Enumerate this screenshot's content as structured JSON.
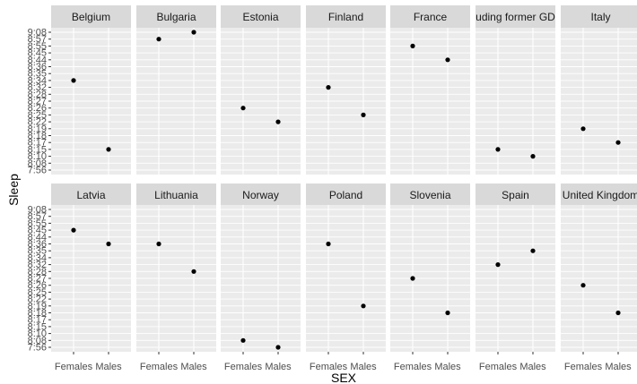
{
  "chart_data": {
    "type": "scatter",
    "xlabel": "SEX",
    "ylabel": "Sleep",
    "categories": [
      "Females",
      "Males"
    ],
    "y_ticks": [
      "7:56",
      "8:08",
      "8:10",
      "8:15",
      "8:17",
      "8:18",
      "8:19",
      "8:22",
      "8:25",
      "8:26",
      "8:27",
      "8:28",
      "8:32",
      "8:34",
      "8:35",
      "8:36",
      "8:44",
      "8:45",
      "8:55",
      "8:57",
      "9:08"
    ],
    "grid": true,
    "facets": [
      {
        "panel": "Belgium",
        "values": [
          "8:34",
          "8:15"
        ]
      },
      {
        "panel": "Bulgaria",
        "values": [
          "8:57",
          "9:08"
        ]
      },
      {
        "panel": "Estonia",
        "values": [
          "8:26",
          "8:22"
        ]
      },
      {
        "panel": "Finland",
        "values": [
          "8:32",
          "8:25"
        ]
      },
      {
        "panel": "France",
        "values": [
          "8:55",
          "8:44"
        ]
      },
      {
        "panel": "uding  former GD",
        "values": [
          "8:15",
          "8:10"
        ]
      },
      {
        "panel": "Italy",
        "values": [
          "8:19",
          "8:17"
        ]
      },
      {
        "panel": "Latvia",
        "values": [
          "8:45",
          "8:36"
        ]
      },
      {
        "panel": "Lithuania",
        "values": [
          "8:36",
          "8:28"
        ]
      },
      {
        "panel": "Norway",
        "values": [
          "8:08",
          "7:56"
        ]
      },
      {
        "panel": "Poland",
        "values": [
          "8:36",
          "8:19"
        ]
      },
      {
        "panel": "Slovenia",
        "values": [
          "8:27",
          "8:18"
        ]
      },
      {
        "panel": "Spain",
        "values": [
          "8:32",
          "8:35"
        ]
      },
      {
        "panel": "United Kingdom",
        "values": [
          "8:26",
          "8:18"
        ]
      }
    ]
  }
}
